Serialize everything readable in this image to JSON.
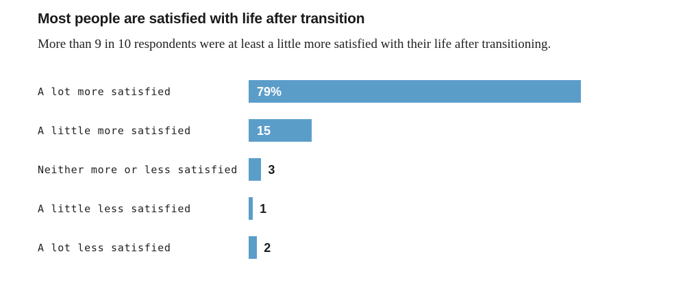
{
  "header": {
    "title": "Most people are satisfied with life after transition",
    "subtitle": "More than 9 in 10 respondents were at least a little more satisfied with their life after transitioning."
  },
  "chart_data": {
    "type": "bar",
    "orientation": "horizontal",
    "title": "Most people are satisfied with life after transition",
    "subtitle": "More than 9 in 10 respondents were at least a little more satisfied with their life after transitioning.",
    "categories": [
      "A lot more satisfied",
      "A little more satisfied",
      "Neither more or less satisfied",
      "A little less satisfied",
      "A lot less satisfied"
    ],
    "values": [
      79,
      15,
      3,
      1,
      2
    ],
    "value_labels": [
      "79%",
      "15",
      "3",
      "1",
      "2"
    ],
    "xlabel": "",
    "ylabel": "",
    "xlim": [
      0,
      79
    ],
    "grid": false,
    "legend": false,
    "bar_color": "#5b9dc9",
    "inside_label_color": "#ffffff",
    "outside_label_color": "#1d1d1d"
  }
}
